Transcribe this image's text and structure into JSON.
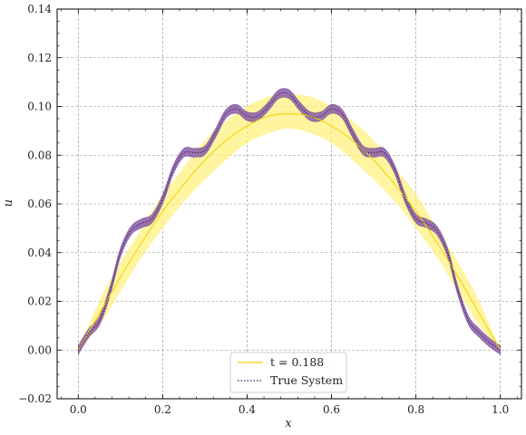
{
  "chart_data": {
    "type": "line",
    "xlabel": "x",
    "ylabel": "u",
    "xlim": [
      -0.05,
      1.05
    ],
    "ylim": [
      -0.02,
      0.14
    ],
    "xticks": [
      0.0,
      0.2,
      0.4,
      0.6,
      0.8,
      1.0
    ],
    "xtick_labels": [
      "0.0",
      "0.2",
      "0.4",
      "0.6",
      "0.8",
      "1.0"
    ],
    "yticks": [
      -0.02,
      0.0,
      0.02,
      0.04,
      0.06,
      0.08,
      0.1,
      0.12,
      0.14
    ],
    "ytick_labels": [
      "−0.02",
      "0.00",
      "0.02",
      "0.04",
      "0.06",
      "0.08",
      "0.10",
      "0.12",
      "0.14"
    ],
    "grid": true,
    "legend_position": "bottom-center",
    "series": [
      {
        "name": "t = 0.188",
        "color": "#f2d40a",
        "band_color": "#fff07a",
        "x": [
          0.0,
          0.05,
          0.1,
          0.15,
          0.2,
          0.25,
          0.3,
          0.35,
          0.4,
          0.45,
          0.5,
          0.55,
          0.6,
          0.65,
          0.7,
          0.75,
          0.8,
          0.85,
          0.9,
          0.95,
          1.0
        ],
        "values": [
          0.0,
          0.015,
          0.03,
          0.044,
          0.057,
          0.068,
          0.078,
          0.086,
          0.092,
          0.096,
          0.097,
          0.096,
          0.092,
          0.086,
          0.078,
          0.068,
          0.057,
          0.044,
          0.03,
          0.015,
          0.0
        ],
        "band_lower": [
          0.0,
          0.01,
          0.024,
          0.038,
          0.05,
          0.061,
          0.07,
          0.078,
          0.085,
          0.089,
          0.091,
          0.089,
          0.085,
          0.078,
          0.07,
          0.061,
          0.05,
          0.038,
          0.024,
          0.01,
          0.0
        ],
        "band_upper": [
          0.0,
          0.02,
          0.036,
          0.05,
          0.064,
          0.075,
          0.086,
          0.094,
          0.1,
          0.104,
          0.105,
          0.104,
          0.1,
          0.094,
          0.086,
          0.075,
          0.064,
          0.05,
          0.036,
          0.02,
          0.0
        ]
      },
      {
        "name": "True System",
        "color": "#2b1b5c",
        "band_color": "#8a5aa8",
        "x": [
          0.0,
          0.025,
          0.05,
          0.075,
          0.1,
          0.125,
          0.15,
          0.175,
          0.2,
          0.225,
          0.25,
          0.275,
          0.3,
          0.325,
          0.35,
          0.375,
          0.4,
          0.425,
          0.45,
          0.475,
          0.5,
          0.525,
          0.55,
          0.575,
          0.6,
          0.625,
          0.65,
          0.675,
          0.7,
          0.725,
          0.75,
          0.775,
          0.8,
          0.825,
          0.85,
          0.875,
          0.9,
          0.925,
          0.95,
          0.975,
          1.0
        ],
        "values": [
          0.0,
          0.007,
          0.012,
          0.024,
          0.04,
          0.049,
          0.052,
          0.054,
          0.062,
          0.074,
          0.081,
          0.081,
          0.082,
          0.089,
          0.097,
          0.099,
          0.096,
          0.096,
          0.1,
          0.105,
          0.105,
          0.1,
          0.096,
          0.096,
          0.099,
          0.097,
          0.089,
          0.082,
          0.081,
          0.081,
          0.074,
          0.062,
          0.054,
          0.052,
          0.049,
          0.04,
          0.024,
          0.012,
          0.007,
          0.003,
          0.0
        ],
        "band_halfwidth": 0.0018
      }
    ]
  }
}
